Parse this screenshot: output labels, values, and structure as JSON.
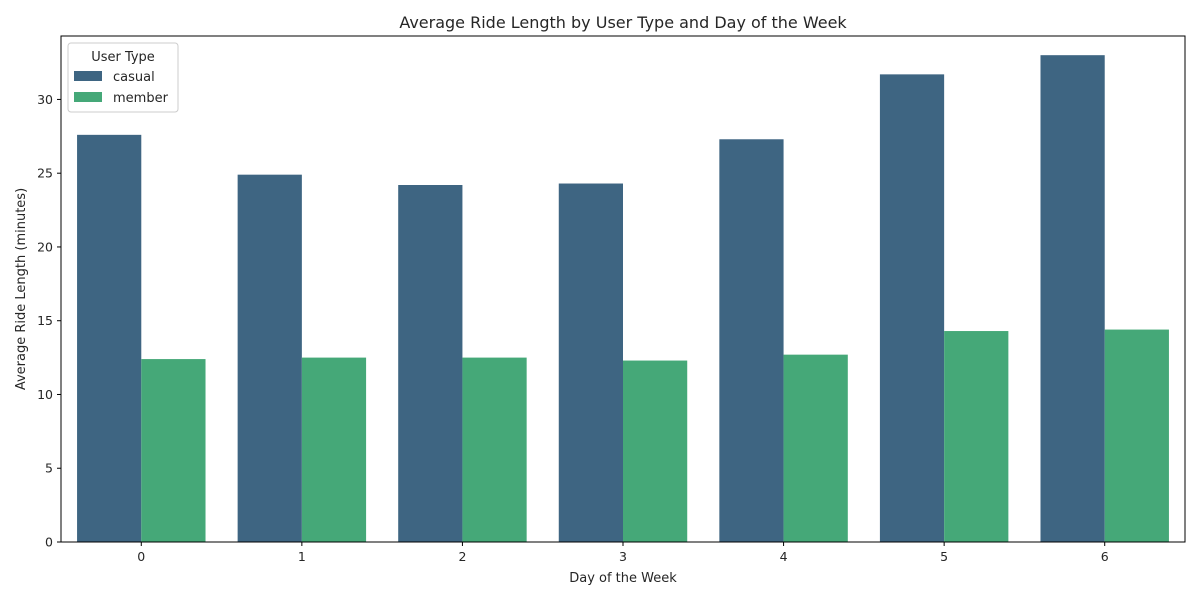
{
  "chart_data": {
    "type": "bar",
    "title": "Average Ride Length by User Type and Day of the Week",
    "xlabel": "Day of the Week",
    "ylabel": "Average Ride Length (minutes)",
    "categories": [
      "0",
      "1",
      "2",
      "3",
      "4",
      "5",
      "6"
    ],
    "series": [
      {
        "name": "casual",
        "color": "#3e6582",
        "values": [
          27.6,
          24.9,
          24.2,
          24.3,
          27.3,
          31.7,
          33.0
        ]
      },
      {
        "name": "member",
        "color": "#45a878",
        "values": [
          12.4,
          12.5,
          12.5,
          12.3,
          12.7,
          14.3,
          14.4
        ]
      }
    ],
    "ylim": [
      0,
      34.3
    ],
    "yticks": [
      0,
      5,
      10,
      15,
      20,
      25,
      30
    ],
    "grid": false,
    "legend": {
      "title": "User Type",
      "position": "top-left"
    }
  }
}
